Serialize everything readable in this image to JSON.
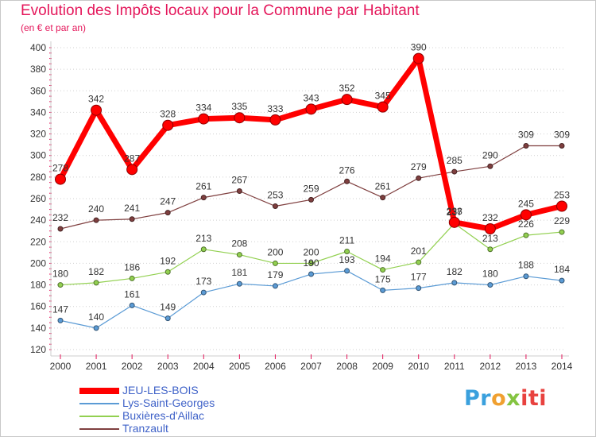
{
  "chart_data": {
    "type": "line",
    "title": "Evolution des Impôts locaux pour la Commune par Habitant",
    "subtitle": "(en € et par an)",
    "xlabel": "",
    "ylabel": "",
    "x": [
      "2000",
      "2001",
      "2002",
      "2003",
      "2004",
      "2005",
      "2006",
      "2007",
      "2008",
      "2009",
      "2010",
      "2011",
      "2012",
      "2013",
      "2014"
    ],
    "ylim": [
      120,
      400
    ],
    "yticks": [
      120,
      140,
      160,
      180,
      200,
      220,
      240,
      260,
      280,
      300,
      320,
      340,
      360,
      380,
      400
    ],
    "grid": "horizontal dotted",
    "legend_position": "bottom-left",
    "series": [
      {
        "name": "JEU-LES-BOIS",
        "color": "#ff0000",
        "values": [
          278,
          342,
          287,
          328,
          334,
          335,
          333,
          343,
          352,
          345,
          390,
          238,
          232,
          245,
          253
        ]
      },
      {
        "name": "Lys-Saint-Georges",
        "color": "#5b9bd5",
        "values": [
          147,
          140,
          161,
          149,
          173,
          181,
          179,
          190,
          193,
          175,
          177,
          182,
          180,
          188,
          184
        ]
      },
      {
        "name": "Buxières-d'Aillac",
        "color": "#92d050",
        "values": [
          180,
          182,
          186,
          192,
          213,
          208,
          200,
          200,
          211,
          194,
          201,
          237,
          213,
          226,
          229
        ]
      },
      {
        "name": "Tranzault",
        "color": "#7f3f3f",
        "values": [
          232,
          240,
          241,
          247,
          261,
          267,
          253,
          259,
          276,
          261,
          279,
          285,
          290,
          309,
          309
        ]
      }
    ]
  },
  "brand": {
    "parts": [
      "Pr",
      "o",
      "x",
      "iti"
    ],
    "colors": {
      "p1": "#3aa0dd",
      "p2": "#f0a030",
      "p3": "#84c441",
      "p4": "#e8423f"
    }
  }
}
